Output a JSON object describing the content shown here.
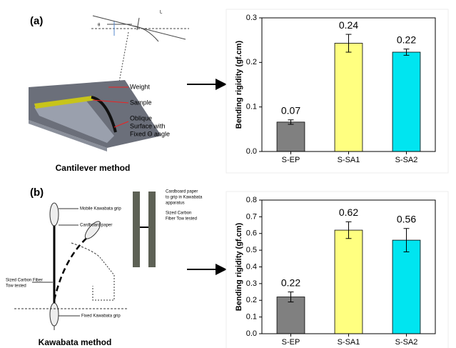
{
  "chart_data": [
    {
      "type": "bar",
      "ylabel": "Bending rigidity (gf.cm)",
      "categories": [
        "S-EP",
        "S-SA1",
        "S-SA2"
      ],
      "values": [
        0.066,
        0.243,
        0.223
      ],
      "value_labels": [
        "0.07",
        "0.24",
        "0.22"
      ],
      "errors": [
        0.005,
        0.02,
        0.007
      ],
      "colors": [
        "#808080",
        "#ffff80",
        "#00e5f0"
      ],
      "ylim": [
        0,
        0.3
      ],
      "yticks": [
        {
          "value": 0,
          "label": "0.0"
        },
        0.1,
        0.2,
        0.3
      ]
    },
    {
      "type": "bar",
      "ylabel": "Bending rigidity (gf.cm)",
      "categories": [
        "S-EP",
        "S-SA1",
        "S-SA2"
      ],
      "values": [
        0.22,
        0.62,
        0.56
      ],
      "value_labels": [
        "0.22",
        "0.62",
        "0.56"
      ],
      "errors": [
        0.03,
        0.05,
        0.07
      ],
      "colors": [
        "#808080",
        "#ffff80",
        "#00e5f0"
      ],
      "ylim": [
        0,
        0.8
      ],
      "yticks": [
        {
          "value": 0,
          "label": "0.0"
        },
        0.1,
        0.2,
        0.3,
        0.4,
        0.5,
        0.6,
        0.7,
        0.8
      ]
    }
  ],
  "diagrams": {
    "a": {
      "label": "(a)",
      "caption": "Cantilever method",
      "angle": "θ",
      "length": "L",
      "weight": "Weight",
      "sample": "Sample",
      "surface": [
        "Oblique",
        "Surface with",
        "Fixed Θ angle"
      ]
    },
    "b": {
      "label": "(b)",
      "caption": "Kawabata method",
      "mobile": "Mobile Kawabata grip",
      "cardboard": "Cardboard paper",
      "tow": [
        "Sized Carbon Fiber",
        "Tow tested"
      ],
      "fixed": "Fixed Kawabata grip",
      "cardboard_note": [
        "Cardboard paper",
        "to grip in Kawabata",
        "apparatus"
      ],
      "tow_note": [
        "Sized Carbon",
        "Fiber Tow tested"
      ]
    }
  }
}
